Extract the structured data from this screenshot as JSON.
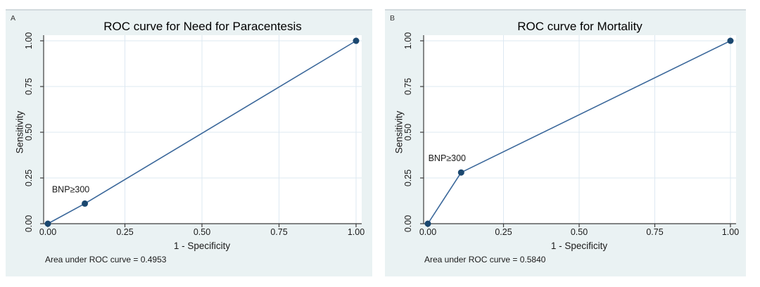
{
  "figure": {
    "description": "Two ROC curve panels",
    "colors": {
      "page_bg": "#ffffff",
      "panel_bg": "#eaf2f3",
      "panel_top_border": "#d2dadd",
      "plot_bg": "#ffffff",
      "grid": "#dde8f2",
      "axis": "#3c3c3c",
      "line": "#3a679a",
      "marker": "#1a476f",
      "text": "#1a1a1a",
      "title_text": "#000000"
    }
  },
  "chart_data": [
    {
      "type": "line",
      "panel_label": "A",
      "title": "ROC curve for Need for Paracentesis",
      "xlabel": "1 - Specificity",
      "ylabel": "Sensitivity",
      "annotation": "Area under ROC curve = 0.4953",
      "xlim": [
        0,
        1
      ],
      "ylim": [
        0,
        1
      ],
      "grid": true,
      "legend": "none",
      "xtick_values": [
        0,
        0.25,
        0.5,
        0.75,
        1
      ],
      "xtick_labels": [
        "0.00",
        "0.25",
        "0.50",
        "0.75",
        "1.00"
      ],
      "ytick_values": [
        0,
        0.25,
        0.5,
        0.75,
        1
      ],
      "ytick_labels": [
        "0.00",
        "0.25",
        "0.50",
        "0.75",
        "1.00"
      ],
      "points": [
        [
          0,
          0
        ],
        [
          0.12,
          0.11
        ],
        [
          1,
          1
        ]
      ],
      "point_label": {
        "text": "BNP≥300",
        "point_index": 1
      }
    },
    {
      "type": "line",
      "panel_label": "B",
      "title": "ROC curve for Mortality",
      "xlabel": "1 - Specificity",
      "ylabel": "Sensitivity",
      "annotation": "Area under ROC curve = 0.5840",
      "xlim": [
        0,
        1
      ],
      "ylim": [
        0,
        1
      ],
      "grid": true,
      "legend": "none",
      "xtick_values": [
        0,
        0.25,
        0.5,
        0.75,
        1
      ],
      "xtick_labels": [
        "0.00",
        "0.25",
        "0.50",
        "0.75",
        "1.00"
      ],
      "ytick_values": [
        0,
        0.25,
        0.5,
        0.75,
        1
      ],
      "ytick_labels": [
        "0.00",
        "0.25",
        "0.50",
        "0.75",
        "1.00"
      ],
      "points": [
        [
          0,
          0
        ],
        [
          0.11,
          0.28
        ],
        [
          1,
          1
        ]
      ],
      "point_label": {
        "text": "BNP≥300",
        "point_index": 1
      }
    }
  ]
}
